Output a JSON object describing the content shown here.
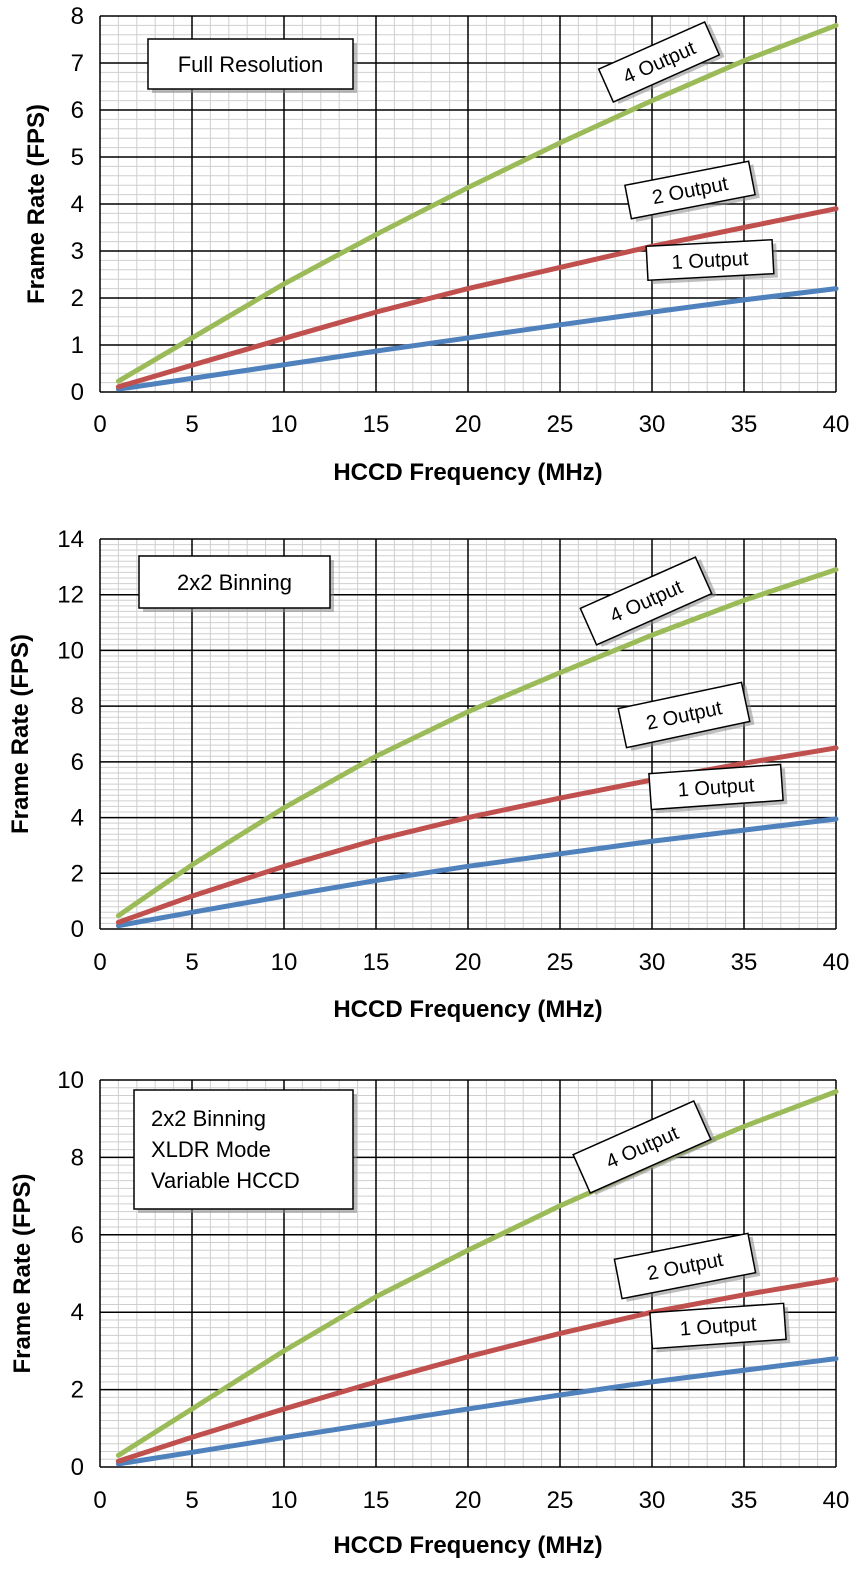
{
  "chart_data": [
    {
      "type": "line",
      "xlabel": "HCCD Frequency (MHz)",
      "ylabel": "Frame Rate (FPS)",
      "xlim": [
        0,
        40
      ],
      "ylim": [
        0,
        8
      ],
      "x_ticks": [
        0,
        5,
        10,
        15,
        20,
        25,
        30,
        35,
        40
      ],
      "y_ticks": [
        0,
        1,
        2,
        3,
        4,
        5,
        6,
        7,
        8
      ],
      "x_tick_labels": [
        "0",
        "5",
        "10",
        "15",
        "20",
        "25",
        "30",
        "35",
        "40"
      ],
      "y_tick_labels": [
        "0",
        "1",
        "2",
        "3",
        "4",
        "5",
        "6",
        "7",
        "8"
      ],
      "annotation": [
        "Full Resolution"
      ],
      "grid": true,
      "x": [
        1,
        5,
        10,
        15,
        20,
        25,
        30,
        35,
        40
      ],
      "series": [
        {
          "label": "1 Output",
          "color": "#4f81bd",
          "values": [
            0.06,
            0.29,
            0.58,
            0.87,
            1.15,
            1.43,
            1.7,
            1.96,
            2.2
          ]
        },
        {
          "label": "2 Output",
          "color": "#c0504d",
          "values": [
            0.11,
            0.57,
            1.14,
            1.7,
            2.2,
            2.65,
            3.1,
            3.5,
            3.9
          ]
        },
        {
          "label": "4 Output",
          "color": "#9bbb59",
          "values": [
            0.23,
            1.15,
            2.3,
            3.35,
            4.35,
            5.3,
            6.2,
            7.05,
            7.8
          ]
        }
      ]
    },
    {
      "type": "line",
      "xlabel": "HCCD Frequency (MHz)",
      "ylabel": "Frame Rate (FPS)",
      "xlim": [
        0,
        40
      ],
      "ylim": [
        0,
        14
      ],
      "x_ticks": [
        0,
        5,
        10,
        15,
        20,
        25,
        30,
        35,
        40
      ],
      "y_ticks": [
        0,
        2,
        4,
        6,
        8,
        10,
        12,
        14
      ],
      "x_tick_labels": [
        "0",
        "5",
        "10",
        "15",
        "20",
        "25",
        "30",
        "35",
        "40"
      ],
      "y_tick_labels": [
        "0",
        "2",
        "4",
        "6",
        "8",
        "10",
        "12",
        "14"
      ],
      "annotation": [
        "2x2 Binning"
      ],
      "grid": true,
      "x": [
        1,
        5,
        10,
        15,
        20,
        25,
        30,
        35,
        40
      ],
      "series": [
        {
          "label": "1 Output",
          "color": "#4f81bd",
          "values": [
            0.12,
            0.6,
            1.18,
            1.74,
            2.25,
            2.7,
            3.15,
            3.55,
            3.95
          ]
        },
        {
          "label": "2 Output",
          "color": "#c0504d",
          "values": [
            0.24,
            1.18,
            2.25,
            3.2,
            4.0,
            4.7,
            5.35,
            5.95,
            6.5
          ]
        },
        {
          "label": "4 Output",
          "color": "#9bbb59",
          "values": [
            0.48,
            2.3,
            4.35,
            6.2,
            7.8,
            9.2,
            10.55,
            11.8,
            12.9
          ]
        }
      ]
    },
    {
      "type": "line",
      "xlabel": "HCCD Frequency (MHz)",
      "ylabel": "Frame Rate (FPS)",
      "xlim": [
        0,
        40
      ],
      "ylim": [
        0,
        10
      ],
      "x_ticks": [
        0,
        5,
        10,
        15,
        20,
        25,
        30,
        35,
        40
      ],
      "y_ticks": [
        0,
        2,
        4,
        6,
        8,
        10
      ],
      "x_tick_labels": [
        "0",
        "5",
        "10",
        "15",
        "20",
        "25",
        "30",
        "35",
        "40"
      ],
      "y_tick_labels": [
        "0",
        "2",
        "4",
        "6",
        "8",
        "10"
      ],
      "annotation": [
        "2x2 Binning",
        "XLDR Mode",
        "Variable HCCD"
      ],
      "grid": true,
      "x": [
        1,
        5,
        10,
        15,
        20,
        25,
        30,
        35,
        40
      ],
      "series": [
        {
          "label": "1 Output",
          "color": "#4f81bd",
          "values": [
            0.08,
            0.38,
            0.76,
            1.13,
            1.5,
            1.86,
            2.2,
            2.5,
            2.8
          ]
        },
        {
          "label": "2 Output",
          "color": "#c0504d",
          "values": [
            0.15,
            0.77,
            1.5,
            2.2,
            2.85,
            3.45,
            4.0,
            4.45,
            4.85
          ]
        },
        {
          "label": "4 Output",
          "color": "#9bbb59",
          "values": [
            0.3,
            1.5,
            3.0,
            4.4,
            5.6,
            6.75,
            7.8,
            8.8,
            9.7
          ]
        }
      ]
    }
  ]
}
